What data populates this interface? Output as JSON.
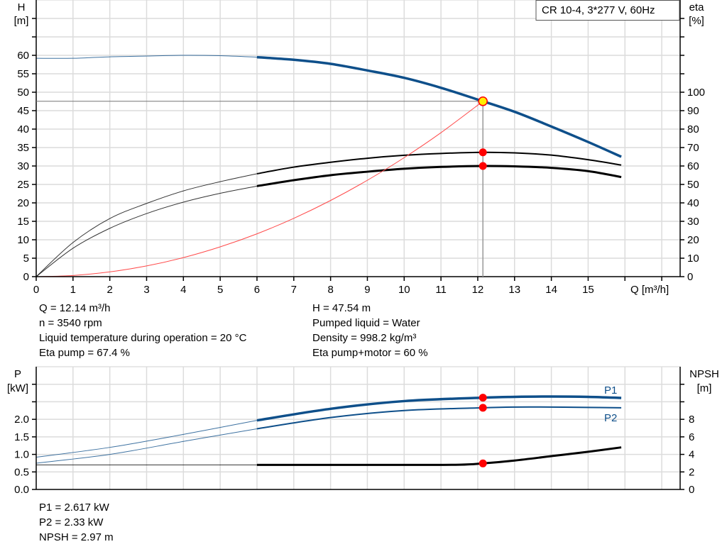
{
  "chart_data": [
    {
      "type": "line",
      "title": "CR 10-4, 3*277 V, 60Hz",
      "xlabel": "Q [m³/h]",
      "ylabel_left": [
        "H",
        "[m]"
      ],
      "ylabel_right": [
        "eta",
        "[%]"
      ],
      "xlim": [
        0,
        17.5
      ],
      "ylim_left": [
        0,
        75
      ],
      "ylim_right": [
        0,
        150
      ],
      "grid": true,
      "x_ticks": [
        "0",
        "1",
        "2",
        "3",
        "4",
        "5",
        "6",
        "7",
        "8",
        "9",
        "10",
        "11",
        "12",
        "13",
        "14",
        "15"
      ],
      "y_left_ticks": [
        "0",
        "5",
        "10",
        "15",
        "20",
        "25",
        "30",
        "35",
        "40",
        "45",
        "50",
        "55",
        "60"
      ],
      "y_right_ticks": [
        "0",
        "10",
        "20",
        "30",
        "40",
        "50",
        "60",
        "70",
        "80",
        "90",
        "100"
      ],
      "series": [
        {
          "axis": "left",
          "color": "#0e4f8a",
          "bold_from": 6,
          "x": [
            0,
            1,
            2,
            3,
            4,
            5,
            6,
            7,
            8,
            9,
            10,
            11,
            12,
            13,
            14,
            15,
            15.9
          ],
          "y": [
            59.2,
            59.2,
            59.6,
            59.8,
            60.0,
            59.9,
            59.5,
            58.8,
            57.7,
            55.9,
            53.9,
            51.2,
            48.0,
            44.7,
            40.7,
            36.5,
            32.5
          ]
        },
        {
          "axis": "right",
          "color": "#000000",
          "bold_from": 6,
          "x": [
            0,
            1,
            2,
            3,
            4,
            5,
            6,
            7,
            8,
            9,
            10,
            11,
            12.14,
            13,
            14,
            15,
            15.9
          ],
          "y": [
            0,
            18.5,
            31.5,
            39.7,
            46.5,
            51.5,
            55.8,
            59.4,
            62,
            64.2,
            65.8,
            66.8,
            67.4,
            67.1,
            65.9,
            63.4,
            60.5
          ]
        },
        {
          "axis": "right",
          "color": "#000000",
          "bold_from": 6,
          "x": [
            0,
            1,
            2,
            3,
            4,
            5,
            6,
            7,
            8,
            9,
            10,
            11,
            12.14,
            13,
            14,
            15,
            15.9
          ],
          "y": [
            0,
            15.4,
            26.2,
            34.2,
            40.4,
            45.2,
            49.1,
            52.3,
            55,
            56.9,
            58.5,
            59.5,
            60,
            59.8,
            59,
            57.2,
            54
          ]
        },
        {
          "axis": "left",
          "color": "#ff4a4a",
          "system_curve": true,
          "x": [
            0,
            1,
            2,
            3,
            4,
            5,
            6,
            7,
            8,
            9,
            10,
            11,
            12.14
          ],
          "y": [
            0,
            0.32,
            1.29,
            2.9,
            5.16,
            8.07,
            11.61,
            15.81,
            20.65,
            26.13,
            32.26,
            39.03,
            47.54
          ]
        }
      ],
      "duty_point": {
        "q": 12.14,
        "h": 47.54,
        "eta_pump": 67.4,
        "eta_total": 60
      }
    },
    {
      "type": "line",
      "ylabel_left": [
        "P",
        "[kW]"
      ],
      "ylabel_right": [
        "NPSH",
        "[m]"
      ],
      "xlim": [
        0,
        17.5
      ],
      "ylim_left": [
        0,
        3.5
      ],
      "ylim_right": [
        0,
        14
      ],
      "grid": true,
      "y_left_ticks": [
        "0.0",
        "0.5",
        "1.0",
        "1.5",
        "2.0"
      ],
      "y_right_ticks": [
        "0",
        "2",
        "4",
        "6",
        "8"
      ],
      "series": [
        {
          "name": "P1",
          "axis": "left",
          "color": "#0e4f8a",
          "bold_from": 6,
          "x": [
            0,
            2,
            4,
            6,
            8,
            10,
            12.14,
            13,
            14,
            15,
            15.9
          ],
          "y": [
            0.92,
            1.2,
            1.57,
            1.97,
            2.3,
            2.52,
            2.617,
            2.64,
            2.65,
            2.64,
            2.61
          ]
        },
        {
          "name": "P2",
          "axis": "left",
          "color": "#0e4f8a",
          "bold_from": 6,
          "x": [
            0,
            2,
            4,
            6,
            8,
            10,
            12.14,
            13,
            14,
            15,
            15.9
          ],
          "y": [
            0.75,
            1.0,
            1.37,
            1.73,
            2.05,
            2.25,
            2.33,
            2.35,
            2.35,
            2.34,
            2.33
          ]
        },
        {
          "axis": "right",
          "color": "#000000",
          "bold_from": 6,
          "x": [
            0,
            3,
            6,
            8,
            10,
            11.5,
            12.14,
            13,
            14,
            15,
            15.9
          ],
          "y": [
            2.8,
            2.8,
            2.8,
            2.8,
            2.8,
            2.82,
            2.97,
            3.3,
            3.8,
            4.3,
            4.8
          ]
        }
      ],
      "duty_point": {
        "q": 12.14,
        "p1": 2.617,
        "p2": 2.33,
        "npsh": 2.97
      }
    }
  ],
  "info_top_left": [
    "Q = 12.14 m³/h",
    "n = 3540 rpm",
    "Liquid temperature during operation = 20 °C",
    "Eta pump = 67.4 %"
  ],
  "info_top_right": [
    "H = 47.54 m",
    "Pumped liquid = Water",
    "Density = 998.2 kg/m³",
    "Eta pump+motor = 60 %"
  ],
  "info_bottom": [
    "P1 = 2.617 kW",
    "P2 = 2.33 kW",
    "NPSH = 2.97 m"
  ]
}
